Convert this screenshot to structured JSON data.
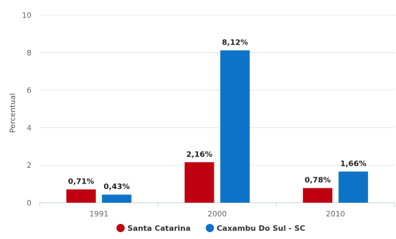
{
  "chart_data": {
    "type": "bar",
    "categories": [
      "1991",
      "2000",
      "2010"
    ],
    "ylabel": "Percentual",
    "xlabel": "",
    "ylim": [
      0,
      10
    ],
    "yticks": [
      0,
      2,
      4,
      6,
      8,
      10
    ],
    "grid": true,
    "legend_position": "bottom-center",
    "series": [
      {
        "name": "Santa Catarina",
        "color": "#c00010",
        "values": [
          0.71,
          2.16,
          0.78
        ],
        "labels": [
          "0,71%",
          "2,16%",
          "0,78%"
        ]
      },
      {
        "name": "Caxambu Do Sul - SC",
        "color": "#0d73c9",
        "values": [
          0.43,
          8.12,
          1.66
        ],
        "labels": [
          "0,43%",
          "8,12%",
          "1,66%"
        ]
      }
    ]
  }
}
